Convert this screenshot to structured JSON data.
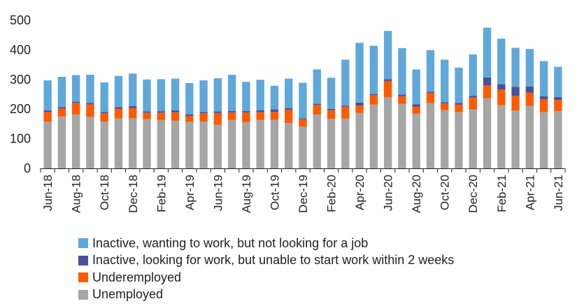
{
  "chart_data": {
    "type": "bar",
    "stacked": true,
    "ylim": [
      0,
      500
    ],
    "yticks": [
      0,
      100,
      200,
      300,
      400,
      500
    ],
    "categories": [
      "Jun-18",
      "Jul-18",
      "Aug-18",
      "Sep-18",
      "Oct-18",
      "Nov-18",
      "Dec-18",
      "Jan-19",
      "Feb-19",
      "Mar-19",
      "Apr-19",
      "May-19",
      "Jun-19",
      "Jul-19",
      "Aug-19",
      "Sep-19",
      "Oct-19",
      "Nov-19",
      "Dec-19",
      "Jan-20",
      "Feb-20",
      "Mar-20",
      "Apr-20",
      "May-20",
      "Jun-20",
      "Jul-20",
      "Aug-20",
      "Sep-20",
      "Oct-20",
      "Nov-20",
      "Dec-20",
      "Jan-21",
      "Feb-21",
      "Mar-21",
      "Apr-21",
      "May-21",
      "Jun-21"
    ],
    "xtick_labels": [
      "Jun-18",
      "Aug-18",
      "Oct-18",
      "Dec-18",
      "Feb-19",
      "Apr-19",
      "Jun-19",
      "Aug-19",
      "Oct-19",
      "Dec-19",
      "Feb-20",
      "Apr-20",
      "Jun-20",
      "Aug-20",
      "Oct-20",
      "Dec-20",
      "Feb-21",
      "Apr-21",
      "Jun-21"
    ],
    "legend_position": "bottom-left",
    "grid": false,
    "series": [
      {
        "name": "Unemployed",
        "color": "#a6a6a6",
        "values": [
          158,
          175,
          182,
          174,
          158,
          169,
          169,
          166,
          163,
          161,
          157,
          158,
          147,
          163,
          156,
          164,
          164,
          153,
          140,
          182,
          167,
          168,
          187,
          215,
          240,
          218,
          185,
          220,
          197,
          190,
          199,
          237,
          213,
          195,
          211,
          190,
          193
        ]
      },
      {
        "name": "Underemployed",
        "color": "#ff5a00",
        "values": [
          33,
          27,
          39,
          42,
          28,
          32,
          35,
          22,
          25,
          29,
          20,
          28,
          40,
          26,
          33,
          26,
          27,
          45,
          26,
          32,
          30,
          40,
          25,
          32,
          55,
          26,
          23,
          35,
          22,
          25,
          40,
          43,
          53,
          50,
          45,
          43,
          38
        ]
      },
      {
        "name": "Inactive, looking for work, but unable to start work within 2 weeks",
        "color": "#4a4f9b",
        "values": [
          5,
          5,
          4,
          5,
          4,
          6,
          6,
          4,
          5,
          6,
          5,
          4,
          5,
          5,
          5,
          6,
          8,
          5,
          3,
          4,
          4,
          4,
          10,
          4,
          6,
          5,
          8,
          4,
          4,
          6,
          6,
          27,
          18,
          30,
          20,
          10,
          10
        ]
      },
      {
        "name": "Inactive, wanting to work, but not looking for a job",
        "color": "#5fa8d9",
        "values": [
          101,
          102,
          90,
          95,
          100,
          105,
          110,
          108,
          108,
          107,
          106,
          107,
          112,
          122,
          98,
          103,
          80,
          100,
          120,
          116,
          105,
          155,
          202,
          163,
          163,
          157,
          118,
          140,
          144,
          119,
          140,
          168,
          154,
          132,
          127,
          119,
          102
        ]
      }
    ]
  }
}
